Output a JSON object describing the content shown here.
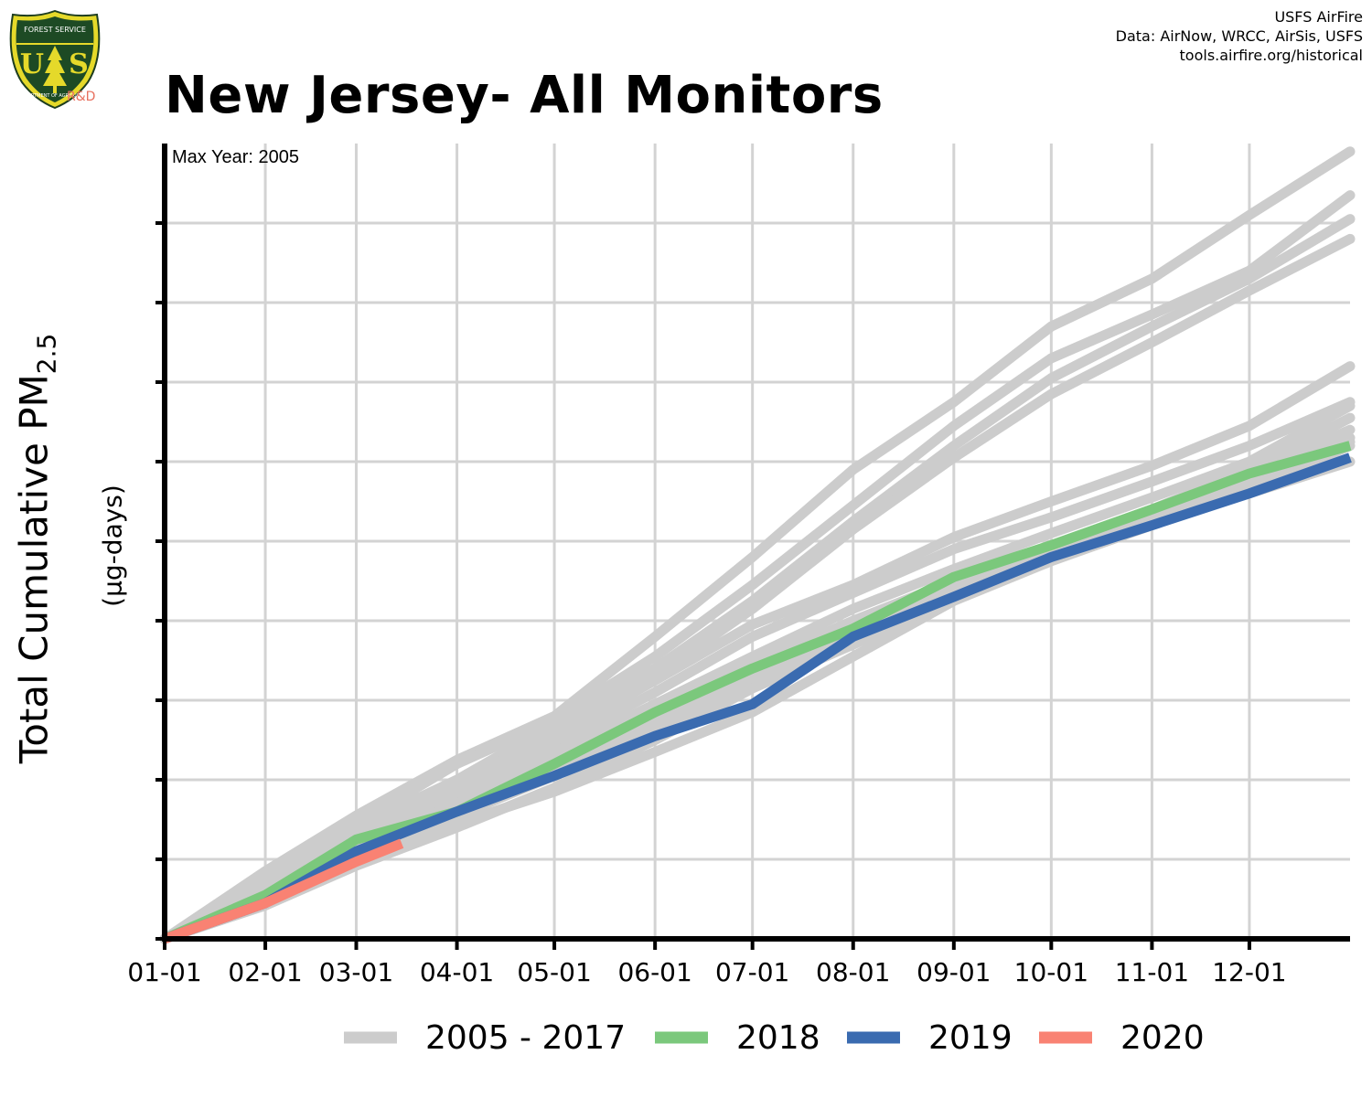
{
  "header": {
    "title": "New Jersey- All Monitors",
    "credits": [
      "USFS AirFire",
      "Data: AirNow, WRCC, AirSis, USFS",
      "tools.airfire.org/historical"
    ]
  },
  "logo": {
    "text": [
      "FOREST SERVICE",
      "U",
      "S",
      "DEPARTMENT OF AGRICULTURE"
    ],
    "badge": "R&D"
  },
  "chart_data": {
    "type": "line",
    "title": "New Jersey- All Monitors",
    "xlabel": "",
    "ylabel": "Total Cumulative PM",
    "ylabel_subscript": "2.5",
    "yunits": "(µg-days)",
    "annotation": "Max Year: 2005",
    "x_tick_labels": [
      "01-01",
      "02-01",
      "03-01",
      "04-01",
      "05-01",
      "06-01",
      "07-01",
      "08-01",
      "09-01",
      "10-01",
      "11-01",
      "12-01"
    ],
    "x_tick_days": [
      0,
      31,
      59,
      90,
      120,
      151,
      181,
      212,
      243,
      273,
      304,
      334
    ],
    "xlim": [
      0,
      365
    ],
    "ylim": [
      0,
      10
    ],
    "y_ticks": [
      0,
      1,
      2,
      3,
      4,
      5,
      6,
      7,
      8,
      9
    ],
    "y_tick_labels_shown": false,
    "grid": true,
    "legend_position": "bottom",
    "legend": [
      "2005 - 2017",
      "2018",
      "2019",
      "2020"
    ],
    "colors": {
      "2005 - 2017": "#cccccc",
      "2018": "#7bc87c",
      "2019": "#3a6bb0",
      "2020": "#f98273",
      "grid": "#d3d3d3",
      "axis": "#000000"
    },
    "background_series": [
      {
        "x": [
          0,
          31,
          59,
          90,
          120,
          151,
          181,
          212,
          243,
          273,
          304,
          334,
          365
        ],
        "y": [
          0,
          0.85,
          1.55,
          2.25,
          2.8,
          3.8,
          4.8,
          5.9,
          6.75,
          7.7,
          8.3,
          9.1,
          9.9
        ]
      },
      {
        "x": [
          0,
          31,
          59,
          90,
          120,
          151,
          181,
          212,
          243,
          273,
          304,
          334,
          365
        ],
        "y": [
          0,
          0.8,
          1.45,
          2.2,
          2.75,
          3.55,
          4.45,
          5.45,
          6.45,
          7.3,
          7.85,
          8.4,
          9.35
        ]
      },
      {
        "x": [
          0,
          31,
          59,
          90,
          120,
          151,
          181,
          212,
          243,
          273,
          304,
          334,
          365
        ],
        "y": [
          0,
          0.75,
          1.4,
          2.0,
          2.7,
          3.4,
          4.25,
          5.25,
          6.2,
          7.05,
          7.7,
          8.3,
          9.05
        ]
      },
      {
        "x": [
          0,
          31,
          59,
          90,
          120,
          151,
          181,
          212,
          243,
          273,
          304,
          334,
          365
        ],
        "y": [
          0,
          0.7,
          1.35,
          1.95,
          2.6,
          3.3,
          4.15,
          5.15,
          6.05,
          6.85,
          7.5,
          8.15,
          8.8
        ]
      },
      {
        "x": [
          0,
          31,
          59,
          90,
          120,
          151,
          181,
          212,
          243,
          273,
          304,
          334,
          365
        ],
        "y": [
          0,
          0.65,
          1.3,
          1.9,
          2.55,
          3.25,
          3.95,
          4.45,
          5.05,
          5.5,
          5.95,
          6.45,
          7.2
        ]
      },
      {
        "x": [
          0,
          31,
          59,
          90,
          120,
          151,
          181,
          212,
          243,
          273,
          304,
          334,
          365
        ],
        "y": [
          0,
          0.6,
          1.25,
          1.85,
          2.45,
          3.1,
          3.8,
          4.35,
          4.9,
          5.3,
          5.75,
          6.2,
          6.75
        ]
      },
      {
        "x": [
          0,
          31,
          59,
          90,
          120,
          151,
          181,
          212,
          243,
          273,
          304,
          334,
          365
        ],
        "y": [
          0,
          0.55,
          1.2,
          1.75,
          2.35,
          2.95,
          3.55,
          4.15,
          4.65,
          5.1,
          5.55,
          6.0,
          6.7
        ]
      },
      {
        "x": [
          0,
          31,
          59,
          90,
          120,
          151,
          181,
          212,
          243,
          273,
          304,
          334,
          365
        ],
        "y": [
          0,
          0.55,
          1.15,
          1.7,
          2.25,
          2.85,
          3.45,
          4.0,
          4.5,
          4.95,
          5.4,
          5.9,
          6.55
        ]
      },
      {
        "x": [
          0,
          31,
          59,
          90,
          120,
          151,
          181,
          212,
          243,
          273,
          304,
          334,
          365
        ],
        "y": [
          0,
          0.5,
          1.1,
          1.65,
          2.2,
          2.75,
          3.35,
          3.9,
          4.45,
          4.9,
          5.35,
          5.85,
          6.4
        ]
      },
      {
        "x": [
          0,
          31,
          59,
          90,
          120,
          151,
          181,
          212,
          243,
          273,
          304,
          334,
          365
        ],
        "y": [
          0,
          0.5,
          1.05,
          1.6,
          2.15,
          2.65,
          3.3,
          3.85,
          4.4,
          4.85,
          5.3,
          5.8,
          6.3
        ]
      },
      {
        "x": [
          0,
          31,
          59,
          90,
          120,
          151,
          181,
          212,
          243,
          273,
          304,
          334,
          365
        ],
        "y": [
          0,
          0.45,
          1.0,
          1.55,
          2.05,
          2.6,
          3.2,
          3.75,
          4.3,
          4.8,
          5.25,
          5.7,
          6.25
        ]
      },
      {
        "x": [
          0,
          31,
          59,
          90,
          120,
          151,
          181,
          212,
          243,
          273,
          304,
          334,
          365
        ],
        "y": [
          0,
          0.45,
          0.95,
          1.45,
          1.85,
          2.35,
          2.85,
          3.55,
          4.25,
          4.75,
          5.2,
          5.65,
          6.2
        ]
      },
      {
        "x": [
          0,
          31,
          59,
          90,
          120,
          151,
          181,
          212,
          243,
          273,
          304,
          334,
          365
        ],
        "y": [
          0,
          0.42,
          0.92,
          1.4,
          1.9,
          2.5,
          3.15,
          3.7,
          4.3,
          4.8,
          5.25,
          5.6,
          6.0
        ]
      }
    ],
    "series": [
      {
        "name": "2018",
        "x": [
          0,
          31,
          59,
          90,
          120,
          151,
          181,
          212,
          243,
          273,
          304,
          334,
          365
        ],
        "y": [
          0,
          0.55,
          1.25,
          1.6,
          2.2,
          2.85,
          3.4,
          3.9,
          4.55,
          4.95,
          5.4,
          5.85,
          6.2
        ]
      },
      {
        "name": "2019",
        "x": [
          0,
          31,
          59,
          90,
          120,
          151,
          181,
          212,
          243,
          273,
          304,
          334,
          365
        ],
        "y": [
          0,
          0.45,
          1.1,
          1.6,
          2.05,
          2.55,
          2.95,
          3.8,
          4.3,
          4.8,
          5.2,
          5.6,
          6.05
        ]
      },
      {
        "name": "2020",
        "x": [
          0,
          31,
          59,
          73
        ],
        "y": [
          0,
          0.45,
          0.97,
          1.2
        ]
      }
    ]
  }
}
